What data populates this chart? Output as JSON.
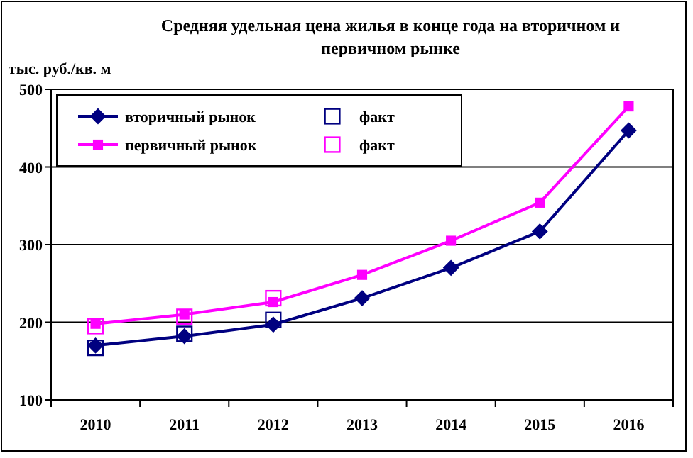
{
  "chart_data": {
    "type": "line",
    "title": "Средняя удельная цена жилья в конце года на вторичном и первичном рынке",
    "ylabel": "тыс. руб./кв. м",
    "categories": [
      "2010",
      "2011",
      "2012",
      "2013",
      "2014",
      "2015",
      "2016"
    ],
    "ylim": [
      100,
      500
    ],
    "yticks": [
      100,
      200,
      300,
      400,
      500
    ],
    "grid": "y",
    "legend": "top left",
    "series": [
      {
        "name": "вторичный рынок",
        "color": "#000080",
        "marker": "diamond",
        "values": [
          170,
          182,
          197,
          231,
          270,
          317,
          447
        ]
      },
      {
        "name": "факт",
        "type": "scatter",
        "color": "#000080",
        "marker": "square",
        "values": [
          167,
          185,
          203,
          null,
          null,
          null,
          null
        ]
      },
      {
        "name": "первичный рынок",
        "color": "#ff00ff",
        "marker": "square",
        "values": [
          198,
          210,
          226,
          261,
          305,
          354,
          478
        ]
      },
      {
        "name": "факт",
        "type": "scatter",
        "color": "#ff00ff",
        "marker": "square",
        "values": [
          195,
          207,
          231,
          null,
          null,
          null,
          null
        ]
      }
    ]
  }
}
